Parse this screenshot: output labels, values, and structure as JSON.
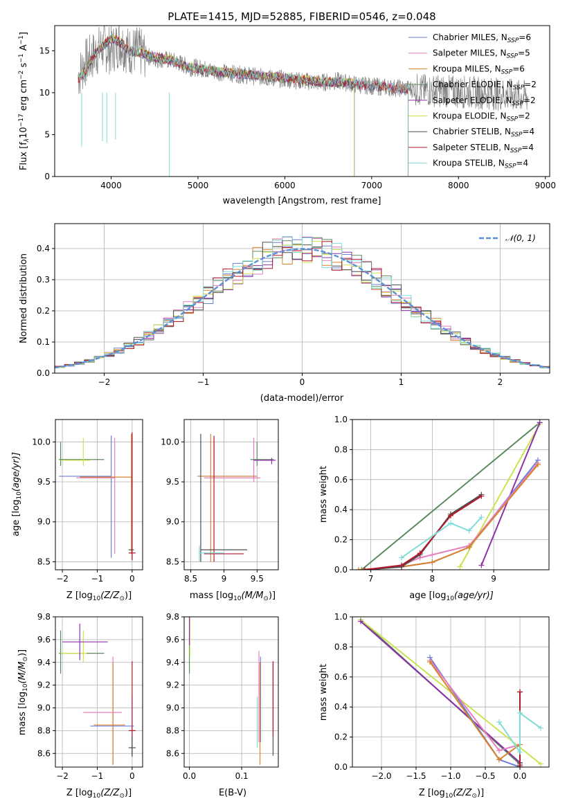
{
  "chart_data": [
    {
      "type": "line",
      "id": "spectrum",
      "title": "PLATE=1415, MJD=52885, FIBERID=0546, z=0.048",
      "xlabel": "wavelength [Angstrom, rest frame]",
      "ylabel_main": "Flux [f",
      "ylabel_sub": "λ",
      "ylabel_rest": "10",
      "ylabel_exp": "−17",
      "ylabel_unit": " erg cm",
      "ylabel_exp2": "−2",
      "ylabel_s": " s",
      "ylabel_exp3": "−1",
      "ylabel_a": " A",
      "ylabel_exp4": "−1",
      "ylabel_end": "]",
      "xlim": [
        3350,
        9050
      ],
      "ylim": [
        0,
        18
      ],
      "xticks": [
        4000,
        5000,
        6000,
        7000,
        8000,
        9000
      ],
      "yticks": [
        0,
        5,
        10,
        15
      ],
      "legend_placement": "top-right",
      "legend": [
        {
          "label": "Chabrier MILES, N",
          "sub": "SSP",
          "suffix": "=6",
          "color": "#6c7fd8"
        },
        {
          "label": "Salpeter MILES, N",
          "sub": "SSP",
          "suffix": "=5",
          "color": "#e57fbf"
        },
        {
          "label": "Kroupa MILES, N",
          "sub": "SSP",
          "suffix": "=6",
          "color": "#d9822b"
        },
        {
          "label": "Chabrier ELODIE, N",
          "sub": "SSP",
          "suffix": "=2",
          "color": "#5b8a5e"
        },
        {
          "label": "Salpeter ELODIE, N",
          "sub": "SSP",
          "suffix": "=2",
          "color": "#8e30a8"
        },
        {
          "label": "Kroupa ELODIE, N",
          "sub": "SSP",
          "suffix": "=2",
          "color": "#cbe34f"
        },
        {
          "label": "Chabrier STELIB, N",
          "sub": "SSP",
          "suffix": "=4",
          "color": "#4d4d4d"
        },
        {
          "label": "Salpeter STELIB, N",
          "sub": "SSP",
          "suffix": "=4",
          "color": "#b2182b"
        },
        {
          "label": "Kroupa STELIB, N",
          "sub": "SSP",
          "suffix": "=4",
          "color": "#7fdcd6"
        }
      ],
      "series": [
        {
          "name": "data",
          "color": "#808080",
          "x": [
            3620,
            3700,
            3800,
            3900,
            4000,
            4100,
            4200,
            4300,
            4400,
            4500,
            4600,
            4700,
            4800,
            4900,
            5000,
            5200,
            5400,
            5600,
            5800,
            6000,
            6200,
            6400,
            6600,
            6800,
            7000,
            7200,
            7400,
            7600,
            7800,
            8000,
            8200,
            8400,
            8600,
            8800
          ],
          "y": [
            12.0,
            13.5,
            14.5,
            15.5,
            15.0,
            16.0,
            15.0,
            15.0,
            14.5,
            14.0,
            14.0,
            13.8,
            13.5,
            13.0,
            13.0,
            12.5,
            12.3,
            12.0,
            11.8,
            11.6,
            11.4,
            11.2,
            11.4,
            11.0,
            10.8,
            10.6,
            10.5,
            10.3,
            10.2,
            10.1,
            10.0,
            9.9,
            9.7,
            9.5
          ]
        },
        {
          "name": "model",
          "color": "#7fdcd6",
          "x": [
            3620,
            3700,
            3800,
            3900,
            4000,
            4100,
            4200,
            4300,
            4400,
            4500,
            4600,
            4700,
            4800,
            4900,
            5000,
            5200,
            5400,
            5600,
            5800,
            6000,
            6200,
            6400,
            6600,
            6800,
            7000,
            7200,
            7400
          ],
          "y": [
            11.5,
            12.5,
            14.5,
            15.5,
            16.5,
            16.0,
            15.0,
            14.8,
            14.5,
            14.2,
            14.0,
            13.8,
            13.3,
            13.0,
            12.8,
            12.5,
            12.3,
            12.1,
            11.9,
            11.7,
            11.5,
            11.3,
            11.2,
            11.0,
            10.8,
            10.6,
            10.4
          ]
        }
      ]
    },
    {
      "type": "line",
      "id": "residual_hist",
      "xlabel": "(data-model)/error",
      "ylabel": "Normed distribution",
      "xlim": [
        -2.5,
        2.5
      ],
      "ylim": [
        0,
        0.48
      ],
      "xticks": [
        -2,
        -1,
        0,
        1,
        2
      ],
      "yticks": [
        0.0,
        0.1,
        0.2,
        0.3,
        0.4
      ],
      "legend_label": "𝒩(0, 1)",
      "legend_placement": "top-right",
      "grid": true
    },
    {
      "type": "scatter",
      "id": "age_vs_Z",
      "xlabel": "Z [log",
      "xlabel_sub": "10",
      "xlabel_rest": "(Z/Z",
      "xlabel_sun": "⊙",
      "xlabel_end": ")]",
      "ylabel": "age  [log",
      "ylabel_sub": "10",
      "ylabel_rest": "(age/yr)]",
      "xlim": [
        -2.2,
        0.3
      ],
      "ylim": [
        8.4,
        10.28
      ],
      "xticks": [
        -2,
        -1,
        0
      ],
      "yticks": [
        8.5,
        9.0,
        9.5,
        10.0
      ]
    },
    {
      "type": "scatter",
      "id": "age_vs_mass",
      "xlabel": "mass [log",
      "xlabel_sub": "10",
      "xlabel_rest": "(M/M",
      "xlabel_sun": "⊙",
      "xlabel_end": ")]",
      "xlim": [
        8.4,
        9.82
      ],
      "ylim": [
        8.4,
        10.28
      ],
      "xticks": [
        8.5,
        9.0,
        9.5
      ],
      "yticks": [
        8.5,
        9.0,
        9.5,
        10.0
      ]
    },
    {
      "type": "line",
      "id": "massweight_vs_age",
      "xlabel": "age  [log",
      "xlabel_sub": "10",
      "xlabel_rest": "(age/yr)]",
      "ylabel": "mass weight",
      "xlim": [
        6.7,
        9.9
      ],
      "ylim": [
        0,
        1.0
      ],
      "xticks": [
        7,
        8,
        9
      ],
      "yticks": [
        0.0,
        0.2,
        0.4,
        0.6,
        0.8,
        1.0
      ],
      "grid": true
    },
    {
      "type": "scatter",
      "id": "mass_vs_Z",
      "xlabel": "Z [log",
      "xlabel_sub": "10",
      "xlabel_rest": "(Z/Z",
      "xlabel_sun": "⊙",
      "xlabel_end": ")]",
      "ylabel": "mass [log",
      "ylabel_sub": "10",
      "ylabel_rest": "(M/M",
      "ylabel_sun": "⊙",
      "ylabel_end": ")]",
      "xlim": [
        -2.2,
        0.3
      ],
      "ylim": [
        8.48,
        9.8
      ],
      "xticks": [
        -2,
        -1,
        0
      ],
      "yticks": [
        8.6,
        8.8,
        9.0,
        9.2,
        9.4,
        9.6,
        9.8
      ]
    },
    {
      "type": "scatter",
      "id": "mass_vs_ebv",
      "xlabel": "E(B-V)",
      "xlim": [
        -0.01,
        0.17
      ],
      "ylim": [
        8.48,
        9.8
      ],
      "xticks": [
        0.0,
        0.1
      ],
      "yticks": [
        8.6,
        8.8,
        9.0,
        9.2,
        9.4,
        9.6,
        9.8
      ]
    },
    {
      "type": "line",
      "id": "massweight_vs_Z",
      "xlabel": "Z [log",
      "xlabel_sub": "10",
      "xlabel_rest": "(Z/Z",
      "xlabel_sun": "⊙",
      "xlabel_end": ")]",
      "ylabel": "mass weight",
      "xlim": [
        -2.42,
        0.42
      ],
      "ylim": [
        0,
        1.0
      ],
      "xticks": [
        -2.0,
        -1.5,
        -1.0,
        -0.5,
        0.0
      ],
      "yticks": [
        0.0,
        0.2,
        0.4,
        0.6,
        0.8,
        1.0
      ],
      "grid": true
    }
  ],
  "colors": {
    "chabrier_miles": "#6c7fd8",
    "salpeter_miles": "#e57fbf",
    "kroupa_miles": "#d9822b",
    "chabrier_elodie": "#5b8a5e",
    "salpeter_elodie": "#8e30a8",
    "kroupa_elodie": "#cbe34f",
    "chabrier_stelib": "#4d4d4d",
    "salpeter_stelib": "#b2182b",
    "kroupa_stelib": "#7fdcd6",
    "gaussian": "#5b8fd9",
    "spectrum_data": "#808080"
  }
}
